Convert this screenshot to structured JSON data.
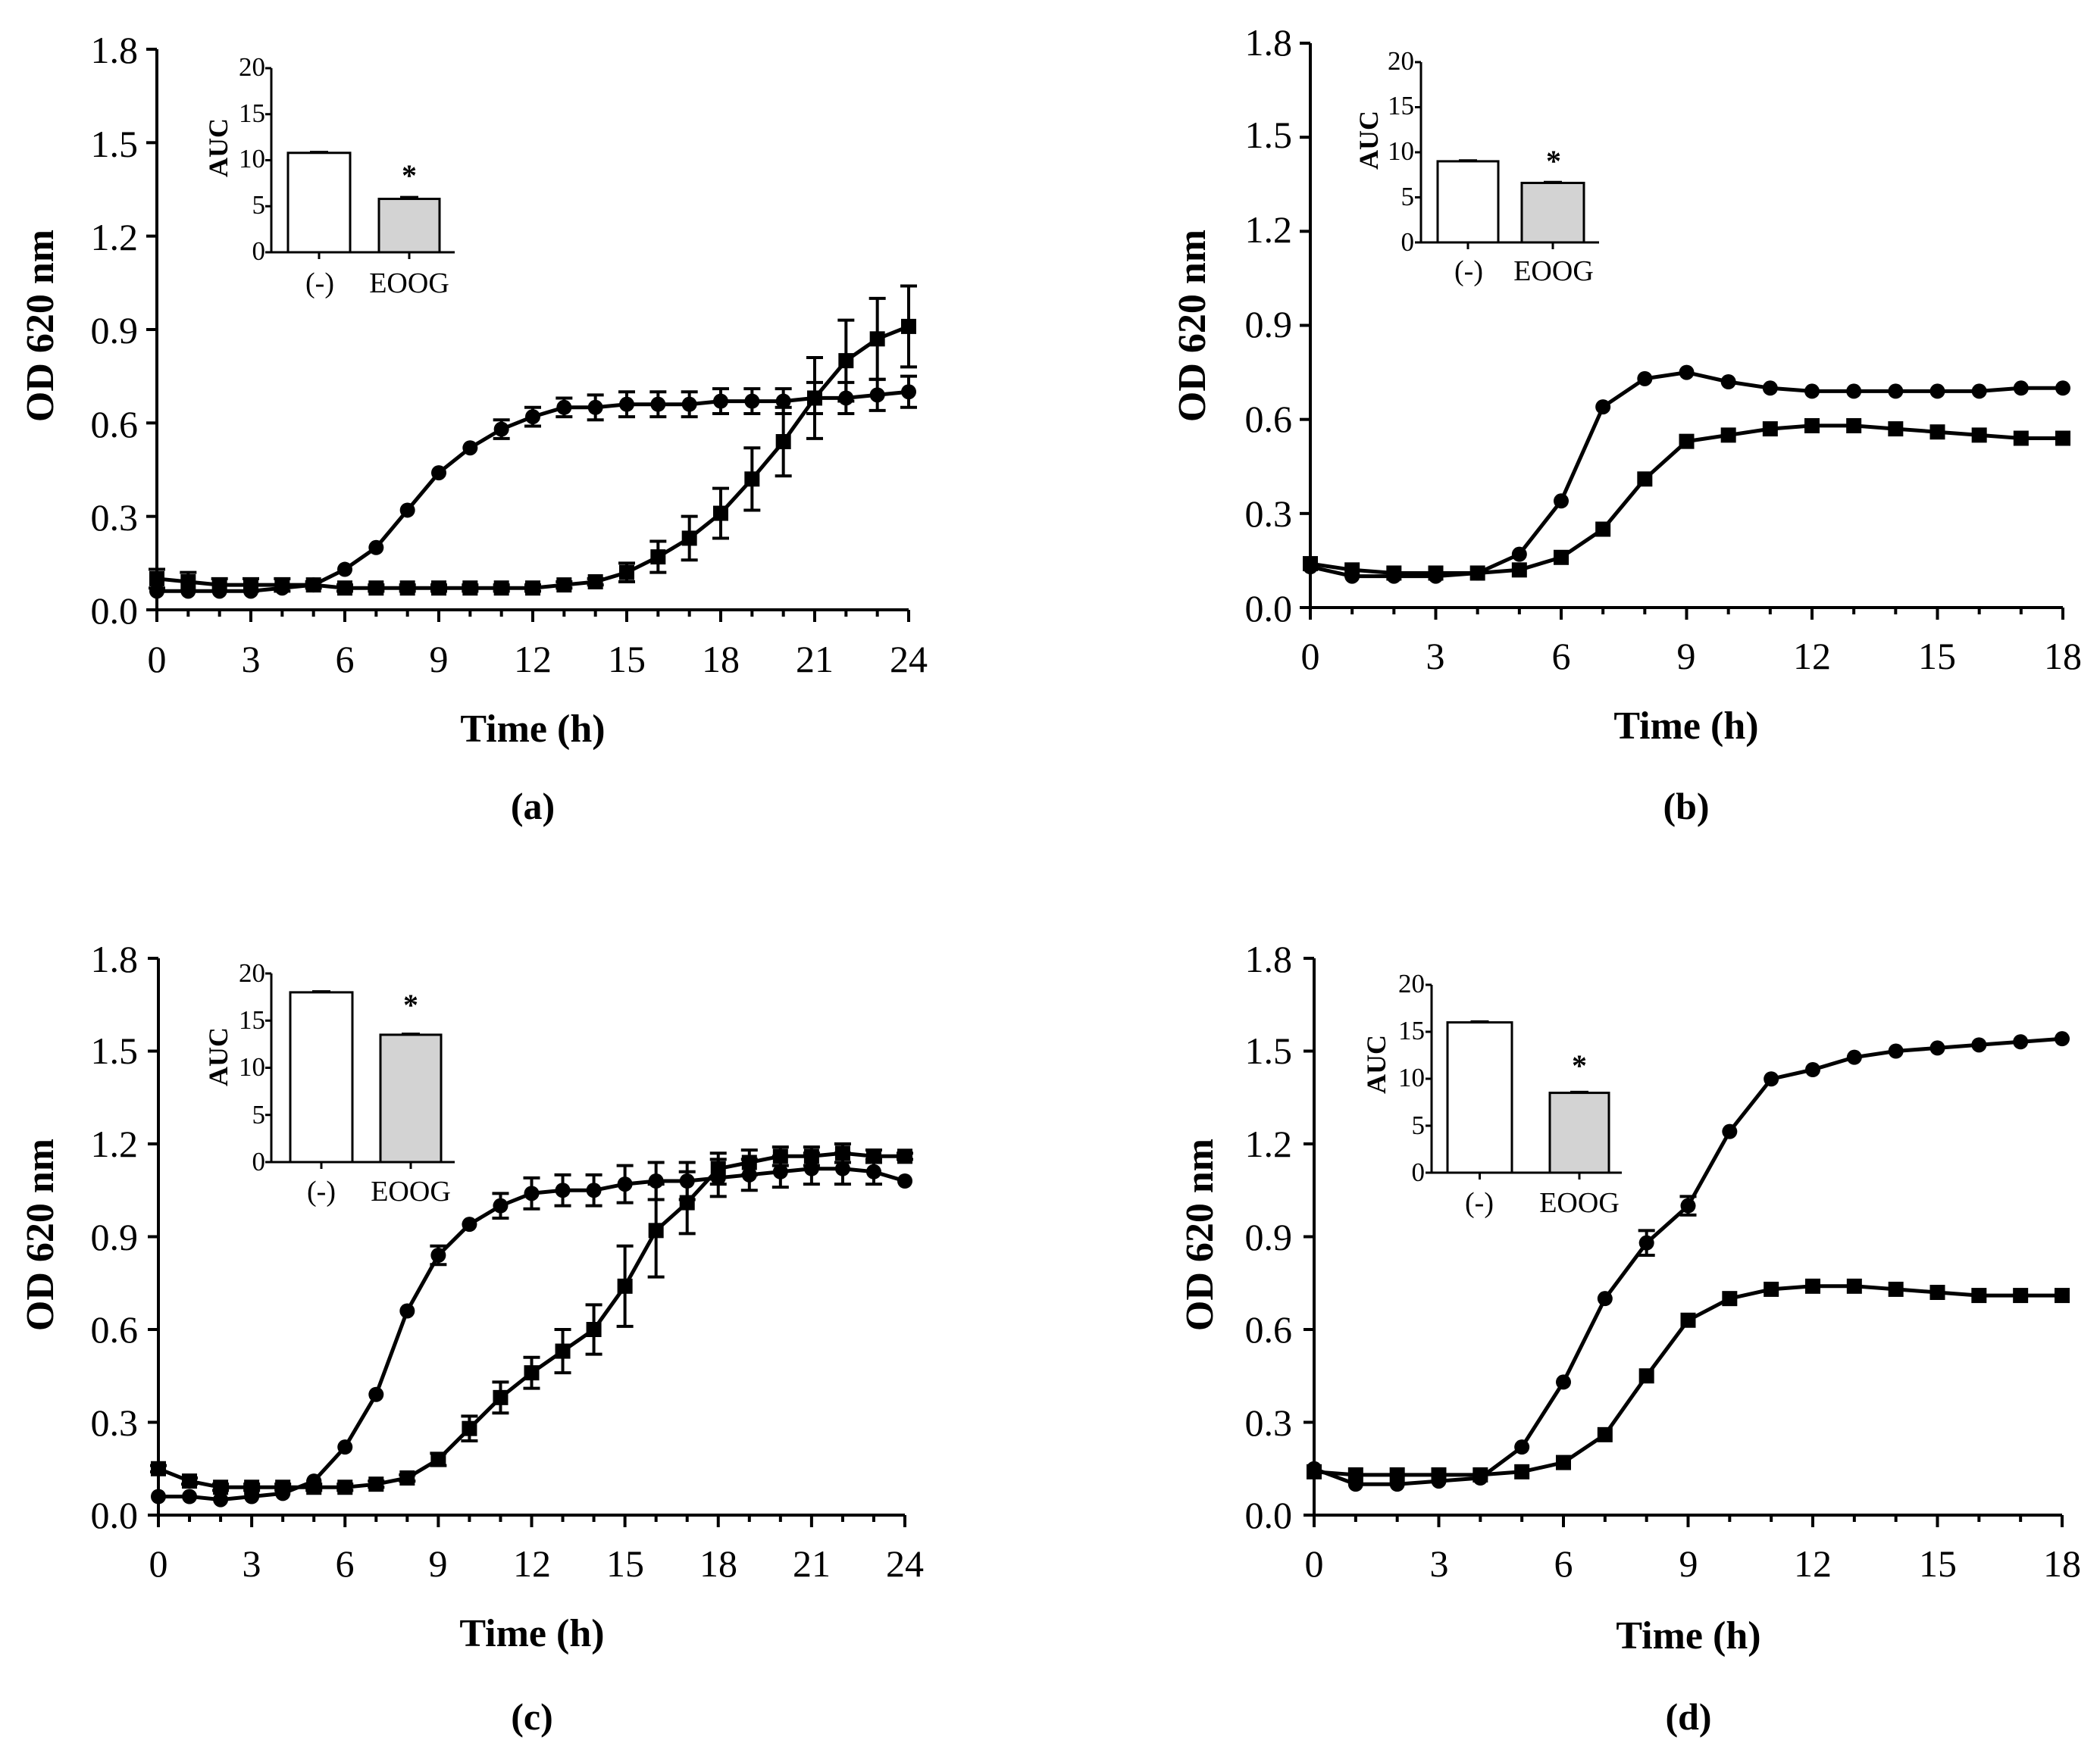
{
  "figure": {
    "ylabel": "OD 620 nm",
    "xlabel": "Time (h)",
    "inset_ylabel": "AUC",
    "significance_mark": "*",
    "colors": {
      "line": "#000000",
      "control_bar": "#ffffff",
      "eoog_bar": "#d3d3d3"
    }
  },
  "chart_data": [
    {
      "panel": "(a)",
      "type": "line",
      "xlabel": "Time (h)",
      "ylabel": "OD 620 nm",
      "xlim": [
        0,
        24
      ],
      "ylim": [
        0,
        1.8
      ],
      "xticks": [
        "0",
        "3",
        "6",
        "9",
        "12",
        "15",
        "18",
        "21",
        "24"
      ],
      "yticks": [
        "0.0",
        "0.3",
        "0.6",
        "0.9",
        "1.2",
        "1.5",
        "1.8"
      ],
      "series": [
        {
          "name": "control",
          "marker": "circle",
          "x": [
            0,
            1,
            2,
            3,
            4,
            5,
            6,
            7,
            8,
            9,
            10,
            11,
            12,
            13,
            14,
            15,
            16,
            17,
            18,
            19,
            20,
            21,
            22,
            23,
            24
          ],
          "y": [
            0.06,
            0.06,
            0.06,
            0.06,
            0.07,
            0.08,
            0.13,
            0.2,
            0.32,
            0.44,
            0.52,
            0.58,
            0.62,
            0.65,
            0.65,
            0.66,
            0.66,
            0.66,
            0.67,
            0.67,
            0.67,
            0.68,
            0.68,
            0.69,
            0.7
          ],
          "err": [
            0,
            0,
            0,
            0,
            0,
            0,
            0,
            0,
            0,
            0,
            0,
            0.03,
            0.03,
            0.03,
            0.04,
            0.04,
            0.04,
            0.04,
            0.04,
            0.04,
            0.04,
            0.05,
            0.05,
            0.05,
            0.05
          ]
        },
        {
          "name": "EOOG",
          "marker": "square",
          "x": [
            0,
            1,
            2,
            3,
            4,
            5,
            6,
            7,
            8,
            9,
            10,
            11,
            12,
            13,
            14,
            15,
            16,
            17,
            18,
            19,
            20,
            21,
            22,
            23,
            24
          ],
          "y": [
            0.1,
            0.09,
            0.08,
            0.08,
            0.08,
            0.08,
            0.07,
            0.07,
            0.07,
            0.07,
            0.07,
            0.07,
            0.07,
            0.08,
            0.09,
            0.12,
            0.17,
            0.23,
            0.31,
            0.42,
            0.54,
            0.68,
            0.8,
            0.87,
            0.91
          ],
          "err": [
            0.03,
            0.03,
            0.02,
            0.02,
            0.02,
            0.01,
            0.01,
            0.01,
            0.01,
            0.01,
            0.01,
            0.01,
            0.01,
            0.01,
            0.01,
            0.03,
            0.05,
            0.07,
            0.08,
            0.1,
            0.11,
            0.13,
            0.13,
            0.13,
            0.13
          ]
        }
      ],
      "inset": {
        "title": "AUC",
        "categories": [
          "(-)",
          "EOOG"
        ],
        "values": [
          10.8,
          5.8
        ],
        "err": [
          0.1,
          0.2
        ],
        "ylim": [
          0,
          20
        ],
        "yticks": [
          "0",
          "5",
          "10",
          "15",
          "20"
        ],
        "significance": "*"
      }
    },
    {
      "panel": "(b)",
      "type": "line",
      "xlabel": "Time (h)",
      "ylabel": "OD 620 nm",
      "xlim": [
        0,
        18
      ],
      "ylim": [
        0,
        1.8
      ],
      "xticks": [
        "0",
        "3",
        "6",
        "9",
        "12",
        "15",
        "18"
      ],
      "yticks": [
        "0.0",
        "0.3",
        "0.6",
        "0.9",
        "1.2",
        "1.5",
        "1.8"
      ],
      "series": [
        {
          "name": "control",
          "marker": "circle",
          "x": [
            0,
            1,
            2,
            3,
            4,
            5,
            6,
            7,
            8,
            9,
            10,
            11,
            12,
            13,
            14,
            15,
            16,
            17,
            18
          ],
          "y": [
            0.13,
            0.1,
            0.1,
            0.1,
            0.11,
            0.17,
            0.34,
            0.64,
            0.73,
            0.75,
            0.72,
            0.7,
            0.69,
            0.69,
            0.69,
            0.69,
            0.69,
            0.7,
            0.7
          ],
          "err": [
            0,
            0,
            0,
            0,
            0,
            0,
            0,
            0,
            0,
            0,
            0,
            0,
            0,
            0,
            0,
            0,
            0,
            0,
            0
          ]
        },
        {
          "name": "EOOG",
          "marker": "square",
          "x": [
            0,
            1,
            2,
            3,
            4,
            5,
            6,
            7,
            8,
            9,
            10,
            11,
            12,
            13,
            14,
            15,
            16,
            17,
            18
          ],
          "y": [
            0.14,
            0.12,
            0.11,
            0.11,
            0.11,
            0.12,
            0.16,
            0.25,
            0.41,
            0.53,
            0.55,
            0.57,
            0.58,
            0.58,
            0.57,
            0.56,
            0.55,
            0.54,
            0.54
          ],
          "err": [
            0,
            0,
            0,
            0,
            0,
            0,
            0,
            0,
            0,
            0,
            0,
            0,
            0,
            0,
            0,
            0,
            0,
            0,
            0
          ]
        }
      ],
      "inset": {
        "title": "AUC",
        "categories": [
          "(-)",
          "EOOG"
        ],
        "values": [
          9.0,
          6.6
        ],
        "err": [
          0.1,
          0.1
        ],
        "ylim": [
          0,
          20
        ],
        "yticks": [
          "0",
          "5",
          "10",
          "15",
          "20"
        ],
        "significance": "*"
      }
    },
    {
      "panel": "(c)",
      "type": "line",
      "xlabel": "Time (h)",
      "ylabel": "OD 620 nm",
      "xlim": [
        0,
        24
      ],
      "ylim": [
        0,
        1.8
      ],
      "xticks": [
        "0",
        "3",
        "6",
        "9",
        "12",
        "15",
        "18",
        "21",
        "24"
      ],
      "yticks": [
        "0.0",
        "0.3",
        "0.6",
        "0.9",
        "1.2",
        "1.5",
        "1.8"
      ],
      "series": [
        {
          "name": "control",
          "marker": "circle",
          "x": [
            0,
            1,
            2,
            3,
            4,
            5,
            6,
            7,
            8,
            9,
            10,
            11,
            12,
            13,
            14,
            15,
            16,
            17,
            18,
            19,
            20,
            21,
            22,
            23,
            24
          ],
          "y": [
            0.06,
            0.06,
            0.05,
            0.06,
            0.07,
            0.11,
            0.22,
            0.39,
            0.66,
            0.84,
            0.94,
            1.0,
            1.04,
            1.05,
            1.05,
            1.07,
            1.08,
            1.08,
            1.09,
            1.1,
            1.11,
            1.12,
            1.12,
            1.11,
            1.08
          ],
          "err": [
            0,
            0,
            0,
            0,
            0,
            0,
            0,
            0,
            0,
            0.03,
            0,
            0.04,
            0.05,
            0.05,
            0.05,
            0.06,
            0.06,
            0.06,
            0.06,
            0.05,
            0.05,
            0.05,
            0.05,
            0.04,
            0
          ]
        },
        {
          "name": "EOOG",
          "marker": "square",
          "x": [
            0,
            1,
            2,
            3,
            4,
            5,
            6,
            7,
            8,
            9,
            10,
            11,
            12,
            13,
            14,
            15,
            16,
            17,
            18,
            19,
            20,
            21,
            22,
            23,
            24
          ],
          "y": [
            0.15,
            0.11,
            0.09,
            0.09,
            0.09,
            0.09,
            0.09,
            0.1,
            0.12,
            0.18,
            0.28,
            0.38,
            0.46,
            0.53,
            0.6,
            0.74,
            0.92,
            1.01,
            1.12,
            1.14,
            1.16,
            1.16,
            1.17,
            1.16,
            1.16
          ],
          "err": [
            0.01,
            0.01,
            0.01,
            0.01,
            0.01,
            0.01,
            0.01,
            0.01,
            0.01,
            0.02,
            0.04,
            0.05,
            0.05,
            0.07,
            0.08,
            0.13,
            0.15,
            0.1,
            0.05,
            0.04,
            0.03,
            0.03,
            0.03,
            0.02,
            0.01
          ]
        }
      ],
      "inset": {
        "title": "AUC",
        "categories": [
          "(-)",
          "EOOG"
        ],
        "values": [
          18.0,
          13.5
        ],
        "err": [
          0.1,
          0.1
        ],
        "ylim": [
          0,
          20
        ],
        "yticks": [
          "0",
          "5",
          "10",
          "15",
          "20"
        ],
        "significance": "*"
      }
    },
    {
      "panel": "(d)",
      "type": "line",
      "xlabel": "Time (h)",
      "ylabel": "OD 620 nm",
      "xlim": [
        0,
        18
      ],
      "ylim": [
        0,
        1.8
      ],
      "xticks": [
        "0",
        "3",
        "6",
        "9",
        "12",
        "15",
        "18"
      ],
      "yticks": [
        "0.0",
        "0.3",
        "0.6",
        "0.9",
        "1.2",
        "1.5",
        "1.8"
      ],
      "series": [
        {
          "name": "control",
          "marker": "circle",
          "x": [
            0,
            1,
            2,
            3,
            4,
            5,
            6,
            7,
            8,
            9,
            10,
            11,
            12,
            13,
            14,
            15,
            16,
            17,
            18
          ],
          "y": [
            0.15,
            0.1,
            0.1,
            0.11,
            0.12,
            0.22,
            0.43,
            0.7,
            0.88,
            1.0,
            1.24,
            1.41,
            1.44,
            1.48,
            1.5,
            1.51,
            1.52,
            1.53,
            1.54
          ],
          "err": [
            0,
            0,
            0,
            0,
            0,
            0,
            0,
            0,
            0.04,
            0.03,
            0,
            0,
            0,
            0,
            0,
            0,
            0,
            0,
            0
          ]
        },
        {
          "name": "EOOG",
          "marker": "square",
          "x": [
            0,
            1,
            2,
            3,
            4,
            5,
            6,
            7,
            8,
            9,
            10,
            11,
            12,
            13,
            14,
            15,
            16,
            17,
            18
          ],
          "y": [
            0.14,
            0.13,
            0.13,
            0.13,
            0.13,
            0.14,
            0.17,
            0.26,
            0.45,
            0.63,
            0.7,
            0.73,
            0.74,
            0.74,
            0.73,
            0.72,
            0.71,
            0.71,
            0.71
          ],
          "err": [
            0,
            0,
            0,
            0,
            0,
            0,
            0,
            0,
            0,
            0,
            0,
            0,
            0,
            0,
            0,
            0,
            0,
            0,
            0
          ]
        }
      ],
      "inset": {
        "title": "AUC",
        "categories": [
          "(-)",
          "EOOG"
        ],
        "values": [
          16.0,
          8.5
        ],
        "err": [
          0.1,
          0.1
        ],
        "ylim": [
          0,
          20
        ],
        "yticks": [
          "0",
          "5",
          "10",
          "15",
          "20"
        ],
        "significance": "*"
      }
    }
  ]
}
